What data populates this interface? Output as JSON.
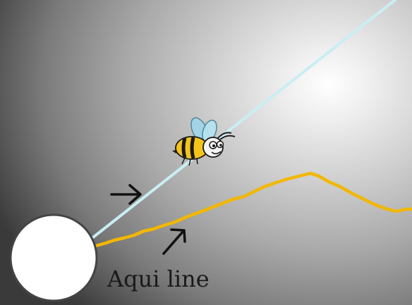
{
  "diagram": {
    "label": "Aqui line",
    "colors": {
      "straight_line": "#c9eef4",
      "aqui_line": "#f2b700",
      "circle": "#ffffff",
      "arrow": "#111111"
    },
    "icons": [
      "bee-icon",
      "right-arrow-icon",
      "up-arrow-icon"
    ]
  }
}
